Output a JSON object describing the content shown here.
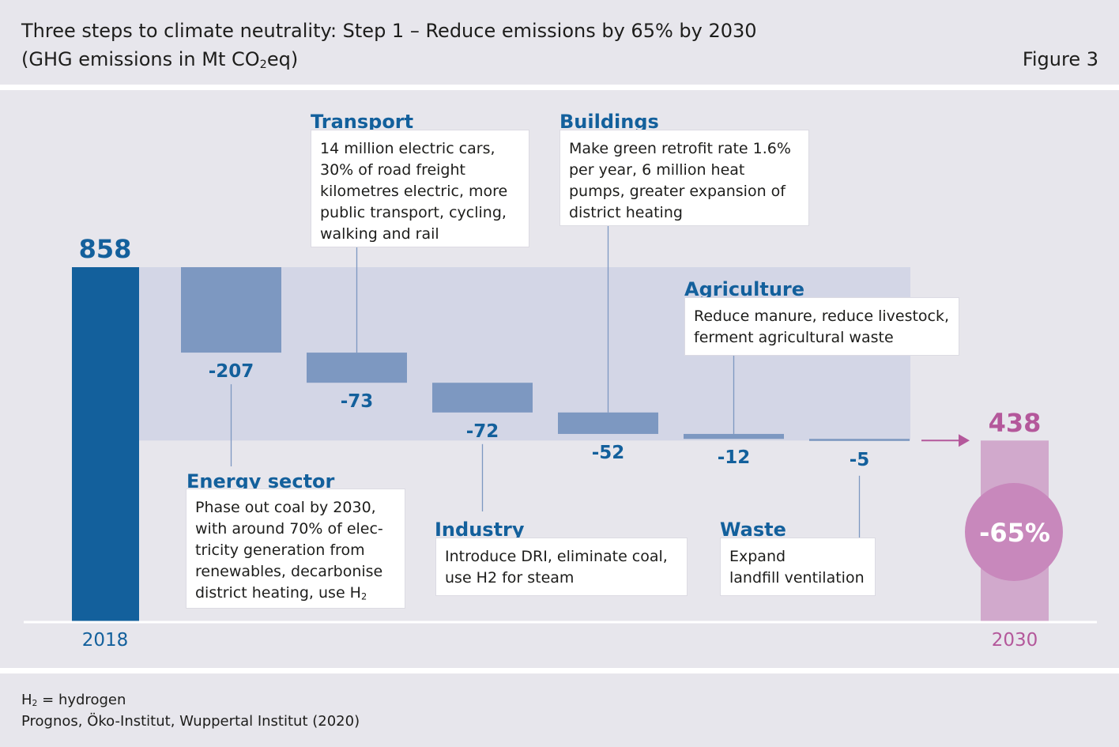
{
  "header": {
    "title_line1": "Three steps to climate neutrality: Step 1 – Reduce emissions by 65% by 2030",
    "title_line2_pre": "(GHG emissions in Mt CO",
    "title_line2_sub": "2",
    "title_line2_post": "eq)",
    "figure_label": "Figure 3"
  },
  "chart_data": {
    "type": "bar",
    "subtype": "waterfall",
    "unit": "Mt CO2eq",
    "start": {
      "label": "2018",
      "value": 858
    },
    "end": {
      "label": "2030",
      "value": 438
    },
    "steps": [
      {
        "value_label": "-207",
        "value": -207
      },
      {
        "value_label": "-73",
        "value": -73
      },
      {
        "value_label": "-72",
        "value": -72
      },
      {
        "value_label": "-52",
        "value": -52
      },
      {
        "value_label": "-12",
        "value": -12
      },
      {
        "value_label": "-5",
        "value": -5
      }
    ],
    "reduction_label": "-65%",
    "colors": {
      "start_bar": "#13609c",
      "end_bar": "#d1a9cc",
      "step_bar": "#7d98c1",
      "connector": "#d3d6e6",
      "accent_magenta": "#b4589b",
      "circle": "#c888bc",
      "value_labels": "#13609c"
    }
  },
  "callouts": {
    "energy": {
      "title": "Energy sector",
      "lines": [
        "Phase out coal by 2030,",
        "with around 70% of elec-",
        "tricity generation from",
        "renewables, decarbonise"
      ],
      "last_pre": "district heating, use H",
      "last_sub": "2"
    },
    "transport": {
      "title": "Transport",
      "lines": [
        "14 million electric cars,",
        "30% of road freight",
        "kilometres electric, more",
        "public transport, cycling,",
        "walking and rail"
      ]
    },
    "industry": {
      "title": "Industry",
      "lines": [
        "Introduce DRI, eliminate coal,",
        "use H2 for steam"
      ]
    },
    "buildings": {
      "title": "Buildings",
      "lines": [
        "Make green retrofit rate 1.6%",
        "per year, 6 million heat",
        "pumps, greater expansion of",
        "district heating"
      ]
    },
    "agriculture": {
      "title": "Agriculture",
      "lines": [
        "Reduce manure, reduce livestock,",
        "ferment agricultural waste"
      ]
    },
    "waste": {
      "title": "Waste",
      "lines": [
        "Expand",
        "landfill ventilation"
      ]
    }
  },
  "footer": {
    "note_pre": "H",
    "note_sub": "2",
    "note_post": " = hydrogen",
    "source": "Prognos, Öko-Institut, Wuppertal Institut (2020)"
  }
}
